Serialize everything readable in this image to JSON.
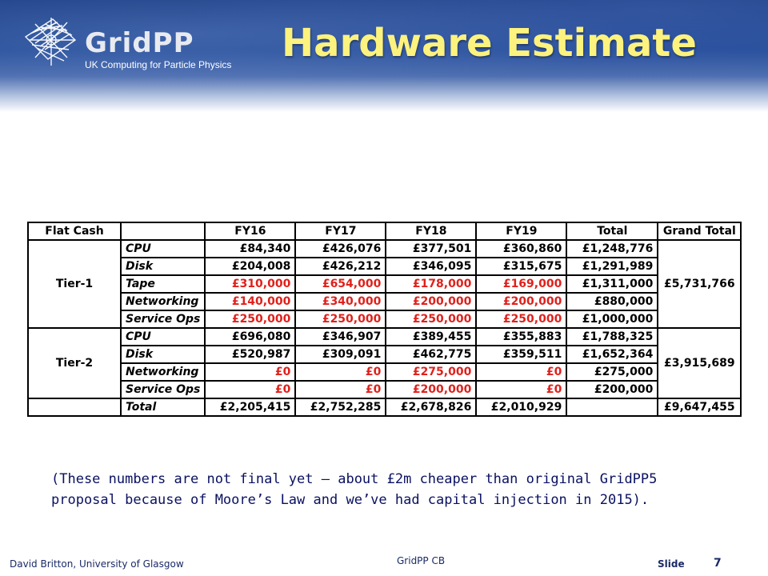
{
  "header": {
    "logo_word": "GridPP",
    "logo_tagline": "UK Computing for Particle Physics",
    "title": "Hardware Estimate"
  },
  "colors": {
    "accent_title": "#fcf27e",
    "red_values": "#e0201b",
    "banner": "#1c3f86"
  },
  "table": {
    "headers": [
      "Flat Cash",
      "",
      "FY16",
      "FY17",
      "FY18",
      "FY19",
      "Total",
      "Grand Total"
    ],
    "tier1_label": "Tier-1",
    "tier1_grand": "£5,731,766",
    "tier2_label": "Tier-2",
    "tier2_grand": "£3,915,689",
    "rows": [
      {
        "label": "CPU",
        "fy16": "£84,340",
        "fy17": "£426,076",
        "fy18": "£377,501",
        "fy19": "£360,860",
        "total": "£1,248,776"
      },
      {
        "label": "Disk",
        "fy16": "£204,008",
        "fy17": "£426,212",
        "fy18": "£346,095",
        "fy19": "£315,675",
        "total": "£1,291,989"
      },
      {
        "label": "Tape",
        "fy16": "£310,000",
        "fy17": "£654,000",
        "fy18": "£178,000",
        "fy19": "£169,000",
        "total": "£1,311,000"
      },
      {
        "label": "Networking",
        "fy16": "£140,000",
        "fy17": "£340,000",
        "fy18": "£200,000",
        "fy19": "£200,000",
        "total": "£880,000"
      },
      {
        "label": "Service Ops",
        "fy16": "£250,000",
        "fy17": "£250,000",
        "fy18": "£250,000",
        "fy19": "£250,000",
        "total": "£1,000,000"
      },
      {
        "label": "CPU",
        "fy16": "£696,080",
        "fy17": "£346,907",
        "fy18": "£389,455",
        "fy19": "£355,883",
        "total": "£1,788,325"
      },
      {
        "label": "Disk",
        "fy16": "£520,987",
        "fy17": "£309,091",
        "fy18": "£462,775",
        "fy19": "£359,511",
        "total": "£1,652,364"
      },
      {
        "label": "Networking",
        "fy16": "£0",
        "fy17": "£0",
        "fy18": "£275,000",
        "fy19": "£0",
        "total": "£275,000"
      },
      {
        "label": "Service Ops",
        "fy16": "£0",
        "fy17": "£0",
        "fy18": "£200,000",
        "fy19": "£0",
        "total": "£200,000"
      }
    ],
    "totals": {
      "label": "Total",
      "fy16": "£2,205,415",
      "fy17": "£2,752,285",
      "fy18": "£2,678,826",
      "fy19": "£2,010,929",
      "total": "",
      "grand": "£9,647,455"
    }
  },
  "note": {
    "line1": "(These numbers are not final yet – about £2m cheaper than original GridPP5",
    "line2": "proposal because of Moore’s Law and we’ve had capital injection in 2015)."
  },
  "footer": {
    "author": "David Britton, University of Glasgow",
    "event": "GridPP CB",
    "slide_label": "Slide",
    "slide_number": "7"
  }
}
